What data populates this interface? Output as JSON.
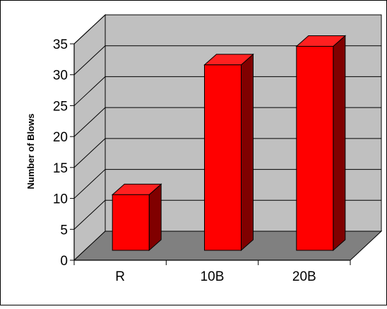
{
  "chart_data": {
    "type": "bar",
    "style": "3d-column",
    "categories": [
      "R",
      "10B",
      "20B"
    ],
    "values": [
      9,
      30,
      33
    ],
    "ylabel": "Number of Blows",
    "xlabel": "",
    "ylim": [
      0,
      35
    ],
    "yticks": [
      0,
      5,
      10,
      15,
      20,
      25,
      30,
      35
    ],
    "grid": true,
    "legend": "none",
    "colors": {
      "bar_front": "#ff0000",
      "bar_top": "#ff2020",
      "bar_side": "#800000",
      "back_wall": "#c0c0c0",
      "side_wall": "#c0c0c0",
      "floor": "#808080"
    }
  }
}
